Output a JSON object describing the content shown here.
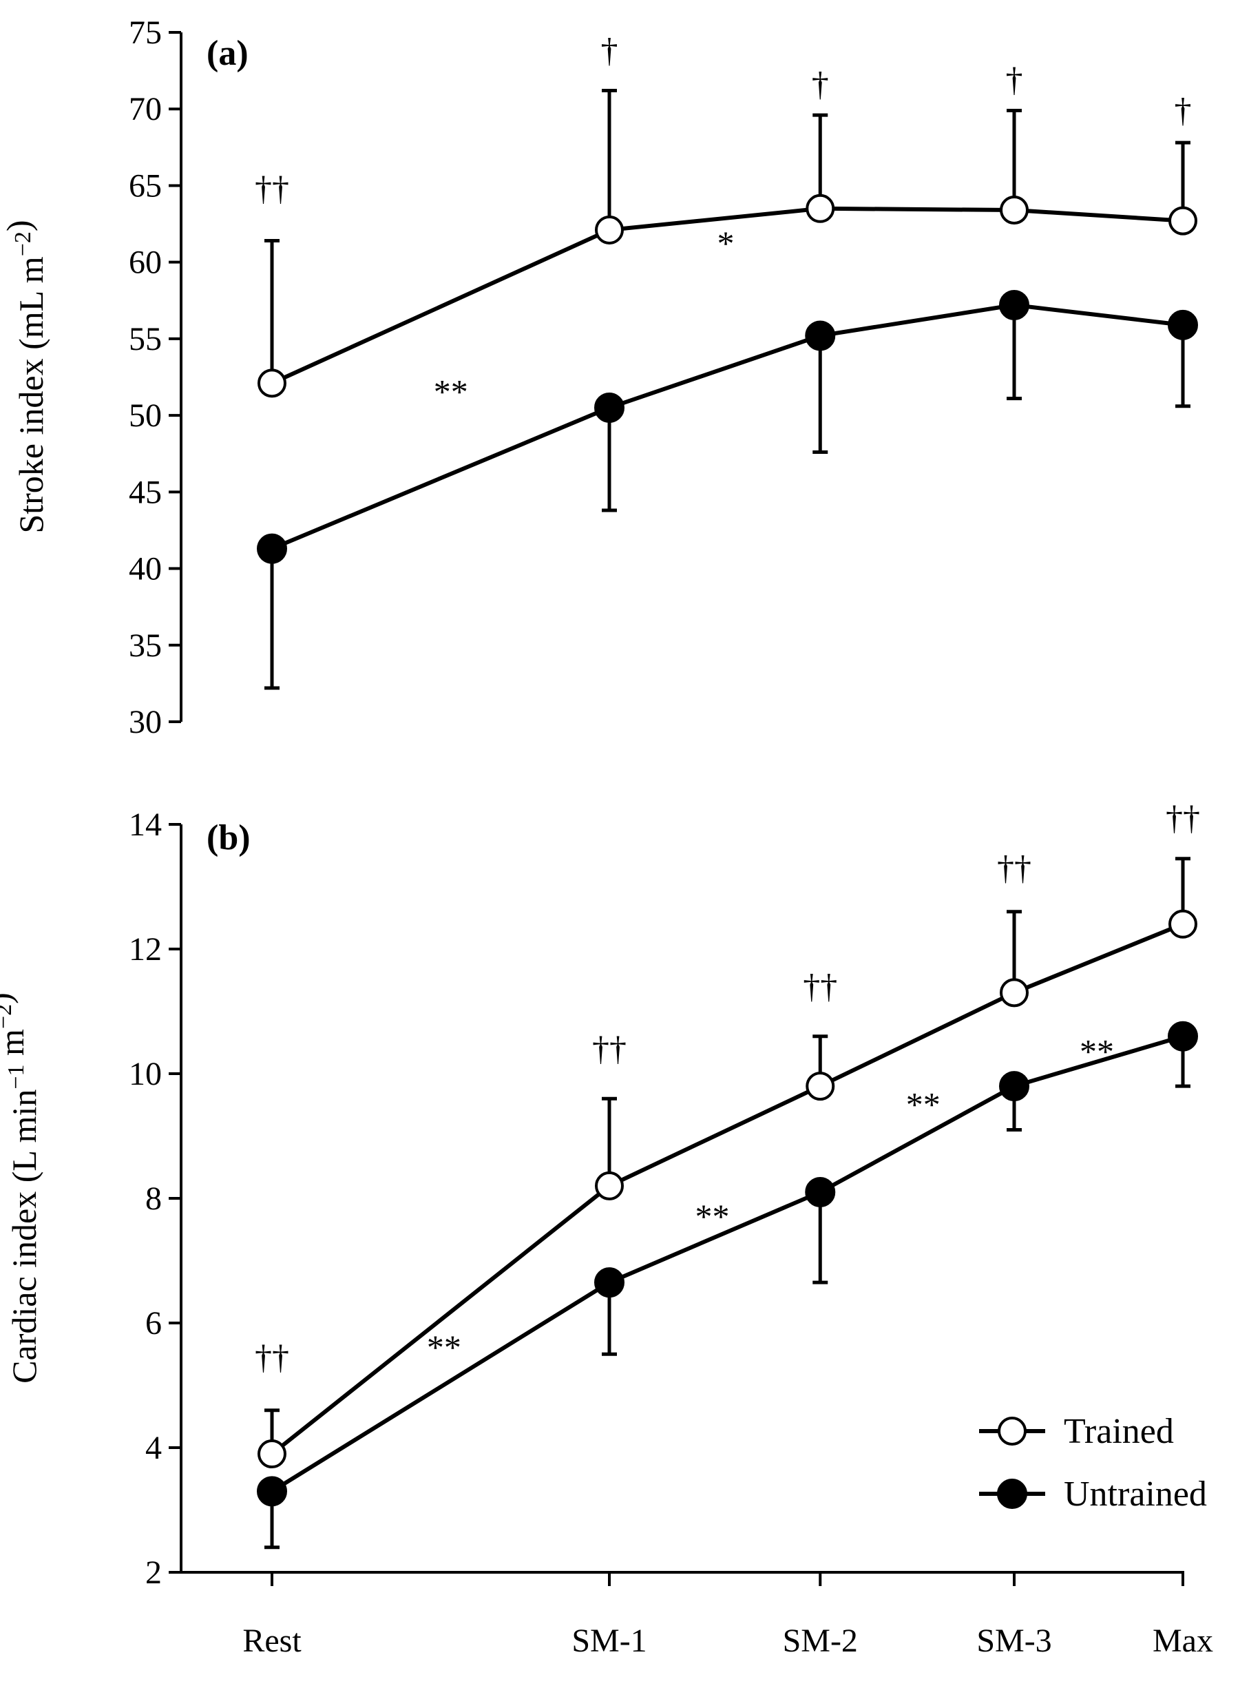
{
  "chart_data": [
    {
      "panel": "(a)",
      "type": "line",
      "ylabel": "Stroke index (mL m−2)",
      "ylim": [
        30,
        75
      ],
      "yticks": [
        30,
        35,
        40,
        45,
        50,
        55,
        60,
        65,
        70,
        75
      ],
      "categories": [
        "Rest",
        "SM-1",
        "SM-2",
        "SM-3",
        "Max"
      ],
      "x_relative": [
        0,
        2,
        3.25,
        4.4,
        5.4
      ],
      "series": [
        {
          "name": "Trained",
          "marker": "open",
          "values": [
            52.1,
            62.1,
            63.5,
            63.4,
            62.7
          ],
          "err_up": [
            61.4,
            71.2,
            69.6,
            69.9,
            67.8
          ],
          "err_dir": "up"
        },
        {
          "name": "Untrained",
          "marker": "filled",
          "values": [
            41.3,
            50.5,
            55.2,
            57.2,
            55.9
          ],
          "err_down": [
            32.2,
            43.8,
            47.6,
            51.1,
            50.6
          ],
          "err_dir": "down"
        }
      ],
      "annotations": [
        {
          "text": "††",
          "cat": 0,
          "y": 64.8
        },
        {
          "text": "†",
          "cat": 1,
          "y": 73.8
        },
        {
          "text": "†",
          "cat": 2,
          "y": 71.6
        },
        {
          "text": "†",
          "cat": 3,
          "y": 71.9
        },
        {
          "text": "†",
          "cat": 4,
          "y": 69.9
        },
        {
          "text": "**",
          "cat": 1,
          "dx": -0.94,
          "y": 51.5
        },
        {
          "text": "*",
          "cat": 2,
          "dx": -0.56,
          "y": 61.2
        }
      ]
    },
    {
      "panel": "(b)",
      "type": "line",
      "ylabel": "Cardiac index (L min−1 m−2)",
      "ylim": [
        2,
        14
      ],
      "yticks": [
        2,
        4,
        6,
        8,
        10,
        12,
        14
      ],
      "categories": [
        "Rest",
        "SM-1",
        "SM-2",
        "SM-3",
        "Max"
      ],
      "x_relative": [
        0,
        2,
        3.25,
        4.4,
        5.4
      ],
      "series": [
        {
          "name": "Trained",
          "marker": "open",
          "values": [
            3.9,
            8.2,
            9.8,
            11.3,
            12.4
          ],
          "err_up": [
            4.6,
            9.6,
            10.6,
            12.6,
            13.45
          ],
          "err_dir": "up"
        },
        {
          "name": "Untrained",
          "marker": "filled",
          "values": [
            3.3,
            6.65,
            8.1,
            9.8,
            10.6
          ],
          "err_down": [
            2.4,
            5.5,
            6.65,
            9.1,
            9.8
          ],
          "err_dir": "down"
        }
      ],
      "annotations": [
        {
          "text": "††",
          "cat": 0,
          "y": 5.45
        },
        {
          "text": "††",
          "cat": 1,
          "y": 10.4
        },
        {
          "text": "††",
          "cat": 2,
          "y": 11.4
        },
        {
          "text": "††",
          "cat": 3,
          "y": 13.3
        },
        {
          "text": "††",
          "cat": 4,
          "y": 14.1
        },
        {
          "text": "**",
          "cat": 1,
          "dx": -0.98,
          "y": 5.6
        },
        {
          "text": "**",
          "cat": 2,
          "dx": -0.64,
          "y": 7.7
        },
        {
          "text": "**",
          "cat": 3,
          "dx": -0.54,
          "y": 9.5
        },
        {
          "text": "**",
          "cat": 4,
          "dx": -0.51,
          "y": 10.35
        }
      ],
      "legend": {
        "position": "bottom-right",
        "entries": [
          "Trained",
          "Untrained"
        ]
      }
    }
  ]
}
